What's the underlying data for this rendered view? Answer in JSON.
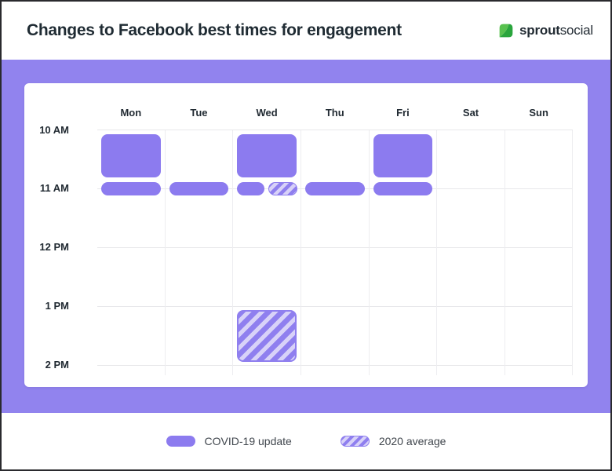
{
  "header": {
    "title": "Changes to Facebook best times for engagement",
    "logo": {
      "brand_bold": "sprout",
      "brand_regular": "social"
    }
  },
  "colors": {
    "frame_purple": "#9183EE",
    "solid_purple": "#8C7BEF",
    "hatch_stripe": "#8F7FEF",
    "hatch_background": "#D8D2F8",
    "grid_line": "#E7E7EA",
    "title_text": "#1F2B33",
    "leaf_light_green": "#58C14F",
    "leaf_dark_green": "#2AA53D",
    "page_border": "#2A2A2E"
  },
  "chart_data": {
    "type": "heatmap",
    "title": "Changes to Facebook best times for engagement",
    "x_categories": [
      "Mon",
      "Tue",
      "Wed",
      "Thu",
      "Fri",
      "Sat",
      "Sun"
    ],
    "y_ticks": [
      "10 AM",
      "11 AM",
      "12 PM",
      "1 PM",
      "2 PM"
    ],
    "grid": true,
    "legend_position": "bottom",
    "series": [
      {
        "name": "COVID-19 update",
        "style": "solid",
        "color": "#8C7BEF",
        "entries": [
          {
            "day": "Mon",
            "from": "10 AM",
            "to": "11 AM",
            "shape": "block"
          },
          {
            "day": "Mon",
            "at": "11 AM",
            "shape": "pill"
          },
          {
            "day": "Tue",
            "at": "11 AM",
            "shape": "pill"
          },
          {
            "day": "Wed",
            "from": "10 AM",
            "to": "11 AM",
            "shape": "block"
          },
          {
            "day": "Wed",
            "at": "11 AM",
            "shape": "pill-left"
          },
          {
            "day": "Thu",
            "at": "11 AM",
            "shape": "pill"
          },
          {
            "day": "Fri",
            "from": "10 AM",
            "to": "11 AM",
            "shape": "block"
          },
          {
            "day": "Fri",
            "at": "11 AM",
            "shape": "pill"
          }
        ]
      },
      {
        "name": "2020 average",
        "style": "hatched",
        "color": "#8F7FEF",
        "entries": [
          {
            "day": "Wed",
            "at": "11 AM",
            "shape": "pill-right"
          },
          {
            "day": "Wed",
            "from": "1 PM",
            "to": "2 PM",
            "shape": "block"
          }
        ]
      }
    ]
  },
  "legend": {
    "items": [
      {
        "label": "COVID-19 update",
        "style": "solid"
      },
      {
        "label": "2020 average",
        "style": "hatched"
      }
    ]
  }
}
